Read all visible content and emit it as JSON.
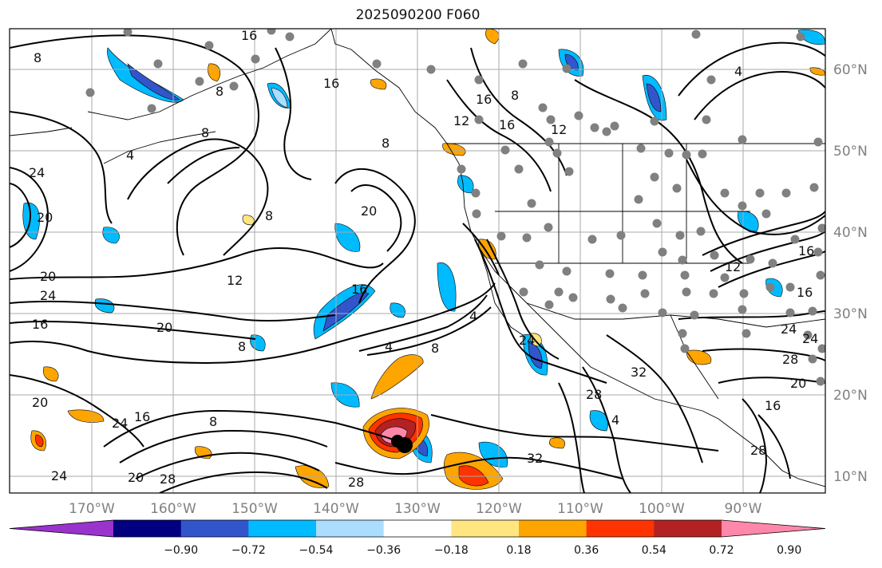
{
  "title": "2025090200 F060",
  "map": {
    "lon_range": [
      -180,
      -80
    ],
    "lat_range": [
      8,
      65
    ],
    "lon_ticks": [
      "170°W",
      "160°W",
      "150°W",
      "140°W",
      "130°W",
      "120°W",
      "110°W",
      "100°W",
      "90°W"
    ],
    "lat_ticks": [
      "60°N",
      "50°N",
      "40°N",
      "30°N",
      "20°N",
      "10°N"
    ],
    "grid": true
  },
  "colorbar": {
    "labels": [
      "−0.90",
      "−0.72",
      "−0.54",
      "−0.36",
      "−0.18",
      "0.18",
      "0.36",
      "0.54",
      "0.72",
      "0.90"
    ],
    "colors": [
      "#9933cc",
      "#000080",
      "#3355cc",
      "#00bbff",
      "#aaddff",
      "#ffffff",
      "#ffe680",
      "#ffa500",
      "#ff3300",
      "#b22222",
      "#ff88aa"
    ],
    "extend": "both"
  },
  "contour_labels": [
    "8",
    "16",
    "8",
    "16",
    "4",
    "8",
    "16",
    "12",
    "16",
    "12",
    "8",
    "4",
    "8",
    "24",
    "20",
    "8",
    "20",
    "16",
    "20",
    "24",
    "16",
    "20",
    "12",
    "8",
    "4",
    "8",
    "4",
    "24",
    "32",
    "28",
    "4",
    "20",
    "24",
    "16",
    "8",
    "28",
    "24",
    "20",
    "28",
    "32",
    "28",
    "24",
    "16",
    "28",
    "20",
    "16",
    "16",
    "24",
    "12"
  ],
  "stations": "dots"
}
